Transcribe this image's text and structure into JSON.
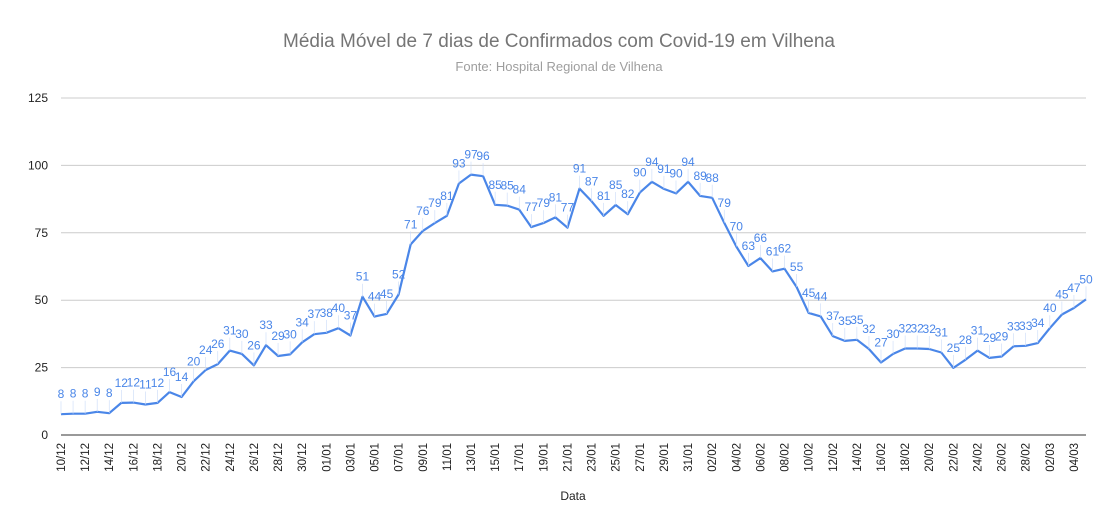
{
  "chart_data": {
    "type": "line",
    "title": "Média Móvel de 7 dias de Confirmados com Covid-19 em Vilhena",
    "subtitle": "Fonte: Hospital Regional de Vilhena",
    "xlabel": "Data",
    "ylabel": "",
    "ylim": [
      0,
      125
    ],
    "yticks": [
      0,
      25,
      50,
      75,
      100,
      125
    ],
    "grid": true,
    "legend": "none",
    "color": "#4a86e8",
    "x": [
      "10/12",
      "11/12",
      "12/12",
      "13/12",
      "14/12",
      "15/12",
      "16/12",
      "17/12",
      "18/12",
      "19/12",
      "20/12",
      "21/12",
      "22/12",
      "23/12",
      "24/12",
      "25/12",
      "26/12",
      "27/12",
      "28/12",
      "29/12",
      "30/12",
      "31/12",
      "01/01",
      "02/01",
      "03/01",
      "04/01",
      "05/01",
      "06/01",
      "07/01",
      "08/01",
      "09/01",
      "10/01",
      "11/01",
      "12/01",
      "13/01",
      "14/01",
      "15/01",
      "16/01",
      "17/01",
      "18/01",
      "19/01",
      "20/01",
      "21/01",
      "22/01",
      "23/01",
      "24/01",
      "25/01",
      "26/01",
      "27/01",
      "28/01",
      "29/01",
      "30/01",
      "31/01",
      "01/02",
      "02/02",
      "03/02",
      "04/02",
      "05/02",
      "06/02",
      "07/02",
      "08/02",
      "09/02",
      "10/02",
      "11/02",
      "12/02",
      "13/02",
      "14/02",
      "15/02",
      "16/02",
      "17/02",
      "18/02",
      "19/02",
      "20/02",
      "21/02",
      "22/02",
      "23/02",
      "24/02",
      "25/02",
      "26/02",
      "27/02",
      "28/02",
      "01/03",
      "02/03",
      "03/03",
      "04/03",
      "05/03"
    ],
    "xtick_labels": [
      "10/12",
      "12/12",
      "14/12",
      "16/12",
      "18/12",
      "20/12",
      "22/12",
      "24/12",
      "26/12",
      "28/12",
      "30/12",
      "01/01",
      "03/01",
      "05/01",
      "07/01",
      "09/01",
      "11/01",
      "13/01",
      "15/01",
      "17/01",
      "19/01",
      "21/01",
      "23/01",
      "25/01",
      "27/01",
      "29/01",
      "31/01",
      "02/02",
      "04/02",
      "06/02",
      "08/02",
      "10/02",
      "12/02",
      "14/02",
      "16/02",
      "18/02",
      "20/02",
      "22/02",
      "24/02",
      "26/02",
      "28/02",
      "02/03",
      "04/03"
    ],
    "values": [
      8,
      8,
      8,
      9,
      8,
      12,
      12,
      11,
      12,
      16,
      14,
      20,
      24,
      26,
      31,
      30,
      26,
      33,
      29,
      30,
      34,
      37,
      38,
      40,
      37,
      51,
      44,
      45,
      52,
      71,
      76,
      79,
      81,
      93,
      97,
      96,
      85,
      85,
      84,
      77,
      79,
      81,
      77,
      91,
      87,
      81,
      85,
      82,
      90,
      94,
      91,
      90,
      94,
      89,
      88,
      79,
      70,
      63,
      66,
      61,
      62,
      55,
      45,
      44,
      37,
      35,
      35,
      32,
      27,
      30,
      32,
      32,
      32,
      31,
      25,
      28,
      31,
      29,
      29,
      33,
      33,
      34,
      40,
      45,
      47,
      50
    ],
    "series_values": [
      7.7,
      7.9,
      7.9,
      8.6,
      8.1,
      11.9,
      12.0,
      11.3,
      11.9,
      15.9,
      14.1,
      19.9,
      24.1,
      26.3,
      31.3,
      30.1,
      25.8,
      33.3,
      29.3,
      29.9,
      34.4,
      37.4,
      37.9,
      39.6,
      36.9,
      51.3,
      43.9,
      44.9,
      52.1,
      70.7,
      75.7,
      78.6,
      81.3,
      93.3,
      96.6,
      96.0,
      85.4,
      85.1,
      83.6,
      77.1,
      78.6,
      80.7,
      76.9,
      91.4,
      86.7,
      81.3,
      85.3,
      81.9,
      89.9,
      93.9,
      91.3,
      89.6,
      93.9,
      88.7,
      88.0,
      78.7,
      69.9,
      62.7,
      65.6,
      60.7,
      61.7,
      54.9,
      45.3,
      44.0,
      36.7,
      34.9,
      35.3,
      31.9,
      26.9,
      30.1,
      32.1,
      32.1,
      31.9,
      30.6,
      24.9,
      27.9,
      31.3,
      28.6,
      29.1,
      32.9,
      33.1,
      34.1,
      39.6,
      44.7,
      47.1,
      50.3
    ]
  }
}
